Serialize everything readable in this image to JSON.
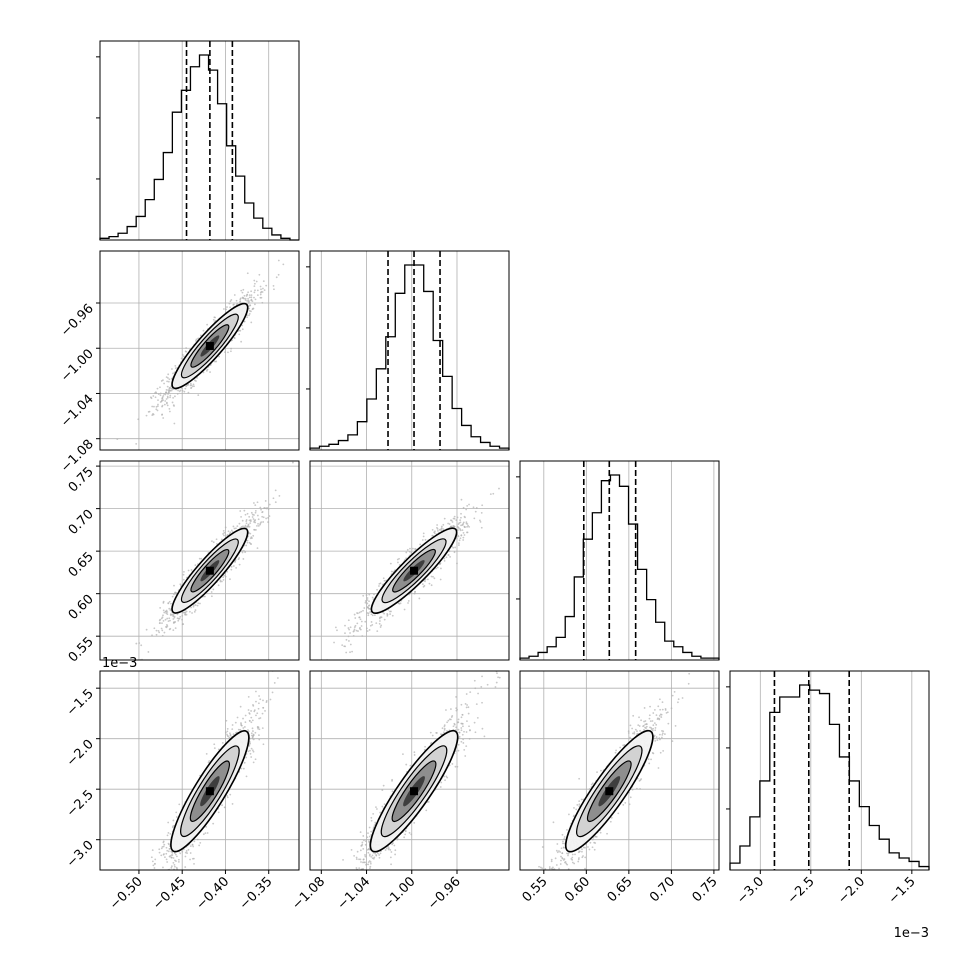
{
  "chart_data": {
    "type": "corner",
    "parameters": 4,
    "axis_scale_labels": {
      "p3_y": "1e−3",
      "p3_x": "1e−3"
    },
    "axes": {
      "p0": {
        "range": [
          -0.545,
          -0.315
        ],
        "ticks": [
          -0.5,
          -0.45,
          -0.4,
          -0.35
        ],
        "tick_labels": [
          "−0.50",
          "−0.45",
          "−0.40",
          "−0.35"
        ]
      },
      "p1": {
        "range": [
          -1.09,
          -0.914
        ],
        "ticks": [
          -1.08,
          -1.04,
          -1.0,
          -0.96
        ],
        "tick_labels": [
          "−1.08",
          "−1.04",
          "−1.00",
          "−0.96"
        ]
      },
      "p2": {
        "range": [
          0.522,
          0.756
        ],
        "ticks": [
          0.55,
          0.6,
          0.65,
          0.7,
          0.75
        ],
        "tick_labels": [
          "0.55",
          "0.60",
          "0.65",
          "0.70",
          "0.75"
        ]
      },
      "p3": {
        "range": [
          -3.3,
          -1.33
        ],
        "ticks": [
          -3.0,
          -2.5,
          -2.0,
          -1.5
        ],
        "tick_labels": [
          "−3.0",
          "−2.5",
          "−2.0",
          "−1.5"
        ]
      }
    },
    "quantiles": {
      "p0": [
        -0.445,
        -0.418,
        -0.392
      ],
      "p1": [
        -1.021,
        -0.998,
        -0.975
      ],
      "p2": [
        0.597,
        0.627,
        0.658
      ],
      "p3": [
        -2.86,
        -2.52,
        -2.12
      ]
    },
    "histograms": {
      "p0": [
        1,
        2,
        4,
        8,
        14,
        24,
        36,
        52,
        76,
        89,
        103,
        110,
        101,
        81,
        56,
        38,
        22,
        13,
        7,
        3,
        1,
        0
      ],
      "p1": [
        1,
        2,
        3,
        5,
        8,
        15,
        27,
        43,
        60,
        83,
        98,
        98,
        84,
        58,
        39,
        22,
        13,
        7,
        4,
        2,
        1
      ],
      "p2": [
        1,
        2,
        4,
        7,
        12,
        23,
        44,
        64,
        78,
        95,
        98,
        92,
        72,
        48,
        32,
        20,
        10,
        7,
        4,
        2,
        1,
        1
      ],
      "p3": [
        4,
        14,
        31,
        52,
        92,
        101,
        101,
        108,
        105,
        103,
        85,
        66,
        52,
        37,
        26,
        18,
        10,
        7,
        5,
        2
      ]
    },
    "grid": true,
    "pair_panels": [
      {
        "x": "p0",
        "y": "p1"
      },
      {
        "x": "p0",
        "y": "p2"
      },
      {
        "x": "p1",
        "y": "p2"
      },
      {
        "x": "p0",
        "y": "p3"
      },
      {
        "x": "p1",
        "y": "p3"
      },
      {
        "x": "p2",
        "y": "p3"
      }
    ],
    "colors": {
      "scatter": "#b0b0b0",
      "contour": "#000000",
      "quantile": "#000000"
    }
  }
}
